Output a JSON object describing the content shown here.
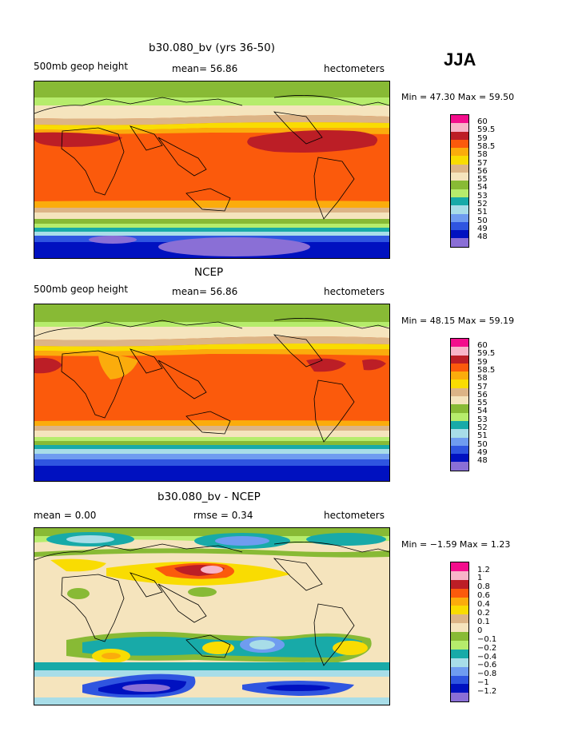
{
  "season": "JJA",
  "palette": [
    "#8a6fd6",
    "#0011c0",
    "#2f55e0",
    "#6f9cf0",
    "#a8dde8",
    "#18aaa8",
    "#b6ec6c",
    "#88ba35",
    "#f5e4bd",
    "#dcb486",
    "#f9dc02",
    "#fbac0c",
    "#fb5a0c",
    "#bc1e26",
    "#f8b4c8",
    "#f30e8c"
  ],
  "panels": [
    {
      "title": "b30.080_bv (yrs 36-50)",
      "left_label": "500mb  geop height",
      "center_label": "mean=   56.86",
      "right_label": "hectometers",
      "minmax": "Min =   47.30  Max =   59.50",
      "chart_data": {
        "type": "heatmap",
        "title": "b30.080_bv (yrs 36-50)",
        "variable": "500mb geop height",
        "units": "hectometers",
        "mean": 56.86,
        "min": 47.3,
        "max": 59.5,
        "levels": [
          "48",
          "49",
          "50",
          "51",
          "52",
          "53",
          "54",
          "55",
          "56",
          "57",
          "58",
          "58.5",
          "59",
          "59.5",
          "60"
        ]
      }
    },
    {
      "title": "NCEP",
      "left_label": "500mb  geop height",
      "center_label": "mean=   56.86",
      "right_label": "hectometers",
      "minmax": "Min =   48.15  Max =   59.19",
      "chart_data": {
        "type": "heatmap",
        "title": "NCEP",
        "variable": "500mb geop height",
        "units": "hectometers",
        "mean": 56.86,
        "min": 48.15,
        "max": 59.19,
        "levels": [
          "48",
          "49",
          "50",
          "51",
          "52",
          "53",
          "54",
          "55",
          "56",
          "57",
          "58",
          "58.5",
          "59",
          "59.5",
          "60"
        ]
      }
    },
    {
      "title": "b30.080_bv - NCEP",
      "left_label": "mean =    0.00",
      "center_label": "rmse =    0.34",
      "right_label": "hectometers",
      "minmax": "Min =  −1.59  Max =    1.23",
      "chart_data": {
        "type": "heatmap",
        "title": "b30.080_bv - NCEP",
        "units": "hectometers",
        "mean": 0.0,
        "rmse": 0.34,
        "min": -1.59,
        "max": 1.23,
        "levels": [
          "−1.2",
          "−1",
          "−0.8",
          "−0.6",
          "−0.4",
          "−0.2",
          "−0.1",
          "0",
          "0.1",
          "0.2",
          "0.4",
          "0.6",
          "0.8",
          "1",
          "1.2"
        ]
      }
    }
  ]
}
